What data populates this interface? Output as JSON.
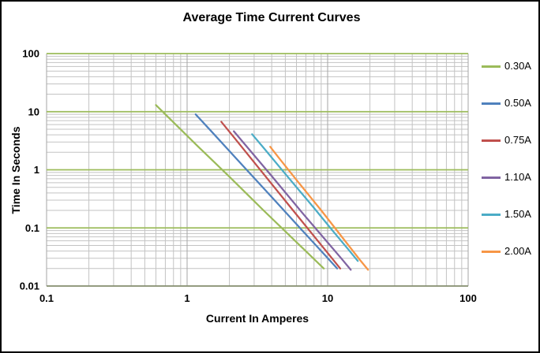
{
  "chart_data": {
    "type": "line",
    "title": "Average Time Current Curves",
    "xlabel": "Current In Amperes",
    "ylabel": "Time In Seconds",
    "x_scale": "log",
    "y_scale": "log",
    "xlim": [
      0.1,
      100
    ],
    "ylim": [
      0.01,
      100
    ],
    "x_tick_labels": [
      "0.1",
      "1",
      "10",
      "100"
    ],
    "y_tick_labels": [
      "100",
      "10",
      "1",
      "0.1",
      "0.01"
    ],
    "grid": {
      "minor": true,
      "major_horizontal_color": "#9BBB59",
      "major_vertical_color": "#A6A6A6",
      "minor_color": "#C3C3C3",
      "axis_line_color": "#808080"
    },
    "legend_position": "right",
    "series": [
      {
        "name": "0.30A",
        "color": "#9BBB59",
        "points": [
          [
            0.6,
            13
          ],
          [
            1.2,
            2.5
          ],
          [
            2,
            0.76
          ],
          [
            3.5,
            0.2
          ],
          [
            6,
            0.057
          ],
          [
            9.4,
            0.02
          ]
        ]
      },
      {
        "name": "0.50A",
        "color": "#4F81BD",
        "points": [
          [
            1.15,
            9
          ],
          [
            1.5,
            4.5
          ],
          [
            2.5,
            1.17
          ],
          [
            4,
            0.34
          ],
          [
            6.5,
            0.094
          ],
          [
            9,
            0.04
          ],
          [
            11.7,
            0.02
          ]
        ]
      },
      {
        "name": "0.75A",
        "color": "#C0504D",
        "points": [
          [
            1.75,
            6.7
          ],
          [
            2.2,
            3.4
          ],
          [
            3.5,
            0.85
          ],
          [
            5.5,
            0.22
          ],
          [
            8,
            0.072
          ],
          [
            10.5,
            0.032
          ],
          [
            12.3,
            0.02
          ]
        ]
      },
      {
        "name": "1.10A",
        "color": "#8064A2",
        "points": [
          [
            2.15,
            4.6
          ],
          [
            2.7,
            2.4
          ],
          [
            4,
            0.78
          ],
          [
            6.5,
            0.19
          ],
          [
            9.5,
            0.065
          ],
          [
            12.5,
            0.03
          ],
          [
            14.6,
            0.019
          ]
        ]
      },
      {
        "name": "1.50A",
        "color": "#4BACC6",
        "points": [
          [
            2.9,
            4.1
          ],
          [
            3.5,
            2.4
          ],
          [
            5,
            0.85
          ],
          [
            8,
            0.22
          ],
          [
            11,
            0.086
          ],
          [
            14,
            0.043
          ],
          [
            16.4,
            0.027
          ]
        ]
      },
      {
        "name": "2.00A",
        "color": "#F79646",
        "points": [
          [
            3.9,
            2.5
          ],
          [
            4.5,
            1.6
          ],
          [
            6,
            0.67
          ],
          [
            9,
            0.2
          ],
          [
            13,
            0.064
          ],
          [
            17,
            0.028
          ],
          [
            19.4,
            0.019
          ]
        ]
      }
    ]
  }
}
